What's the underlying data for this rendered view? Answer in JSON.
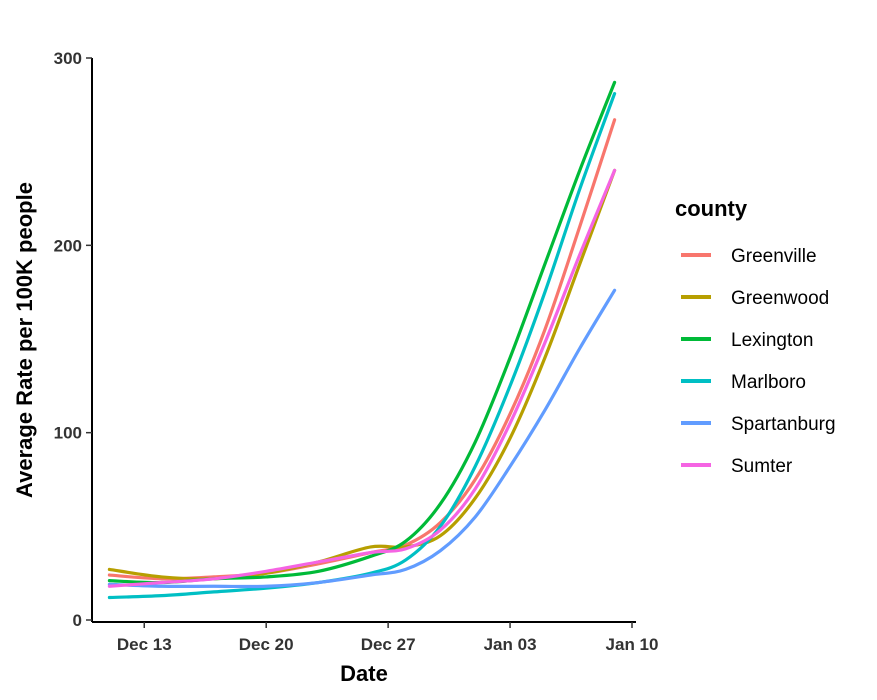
{
  "chart_data": {
    "type": "line",
    "title": "",
    "xlabel": "Date",
    "ylabel": "Average Rate per 100K people",
    "x_ticks": [
      "Dec 13",
      "Dec 20",
      "Dec 27",
      "Jan 03",
      "Jan 10"
    ],
    "y_ticks": [
      "0",
      "100",
      "200",
      "300"
    ],
    "ylim": [
      0,
      300
    ],
    "xlim": [
      "2020-12-10",
      "2021-01-10"
    ],
    "grid": false,
    "legend": {
      "title": "county",
      "placement": "right"
    },
    "series": [
      {
        "name": "Greenville",
        "color": "#F8766D",
        "x": [
          "2020-12-11",
          "2020-12-14",
          "2020-12-17",
          "2020-12-20",
          "2020-12-23",
          "2020-12-26",
          "2020-12-28",
          "2020-12-30",
          "2021-01-01",
          "2021-01-03",
          "2021-01-05",
          "2021-01-07",
          "2021-01-09"
        ],
        "y": [
          24,
          22,
          23,
          25,
          30,
          36,
          40,
          52,
          75,
          110,
          155,
          210,
          267
        ]
      },
      {
        "name": "Greenwood",
        "color": "#B79F00",
        "x": [
          "2020-12-11",
          "2020-12-14",
          "2020-12-17",
          "2020-12-20",
          "2020-12-23",
          "2020-12-26",
          "2020-12-28",
          "2020-12-30",
          "2021-01-01",
          "2021-01-03",
          "2021-01-05",
          "2021-01-07",
          "2021-01-09"
        ],
        "y": [
          27,
          23,
          22,
          25,
          31,
          39,
          39,
          45,
          65,
          97,
          140,
          190,
          240
        ]
      },
      {
        "name": "Lexington",
        "color": "#00BA38",
        "x": [
          "2020-12-11",
          "2020-12-14",
          "2020-12-17",
          "2020-12-20",
          "2020-12-23",
          "2020-12-26",
          "2020-12-28",
          "2020-12-30",
          "2021-01-01",
          "2021-01-03",
          "2021-01-05",
          "2021-01-07",
          "2021-01-09"
        ],
        "y": [
          21,
          20,
          22,
          23,
          26,
          34,
          42,
          62,
          95,
          140,
          190,
          240,
          287
        ]
      },
      {
        "name": "Marlboro",
        "color": "#00BFC4",
        "x": [
          "2020-12-11",
          "2020-12-14",
          "2020-12-17",
          "2020-12-20",
          "2020-12-23",
          "2020-12-26",
          "2020-12-28",
          "2020-12-30",
          "2021-01-01",
          "2021-01-03",
          "2021-01-05",
          "2021-01-07",
          "2021-01-09"
        ],
        "y": [
          12,
          13,
          15,
          17,
          20,
          25,
          32,
          50,
          82,
          125,
          175,
          230,
          281
        ]
      },
      {
        "name": "Spartanburg",
        "color": "#619CFF",
        "x": [
          "2020-12-11",
          "2020-12-14",
          "2020-12-17",
          "2020-12-20",
          "2020-12-23",
          "2020-12-26",
          "2020-12-28",
          "2020-12-30",
          "2021-01-01",
          "2021-01-03",
          "2021-01-05",
          "2021-01-07",
          "2021-01-09"
        ],
        "y": [
          19,
          18,
          18,
          18,
          20,
          24,
          27,
          37,
          55,
          82,
          112,
          145,
          176
        ]
      },
      {
        "name": "Sumter",
        "color": "#F564E3",
        "x": [
          "2020-12-11",
          "2020-12-14",
          "2020-12-17",
          "2020-12-20",
          "2020-12-23",
          "2020-12-26",
          "2020-12-28",
          "2020-12-30",
          "2021-01-01",
          "2021-01-03",
          "2021-01-05",
          "2021-01-07",
          "2021-01-09"
        ],
        "y": [
          18,
          20,
          22,
          26,
          31,
          36,
          38,
          48,
          70,
          105,
          148,
          195,
          240
        ]
      }
    ]
  }
}
